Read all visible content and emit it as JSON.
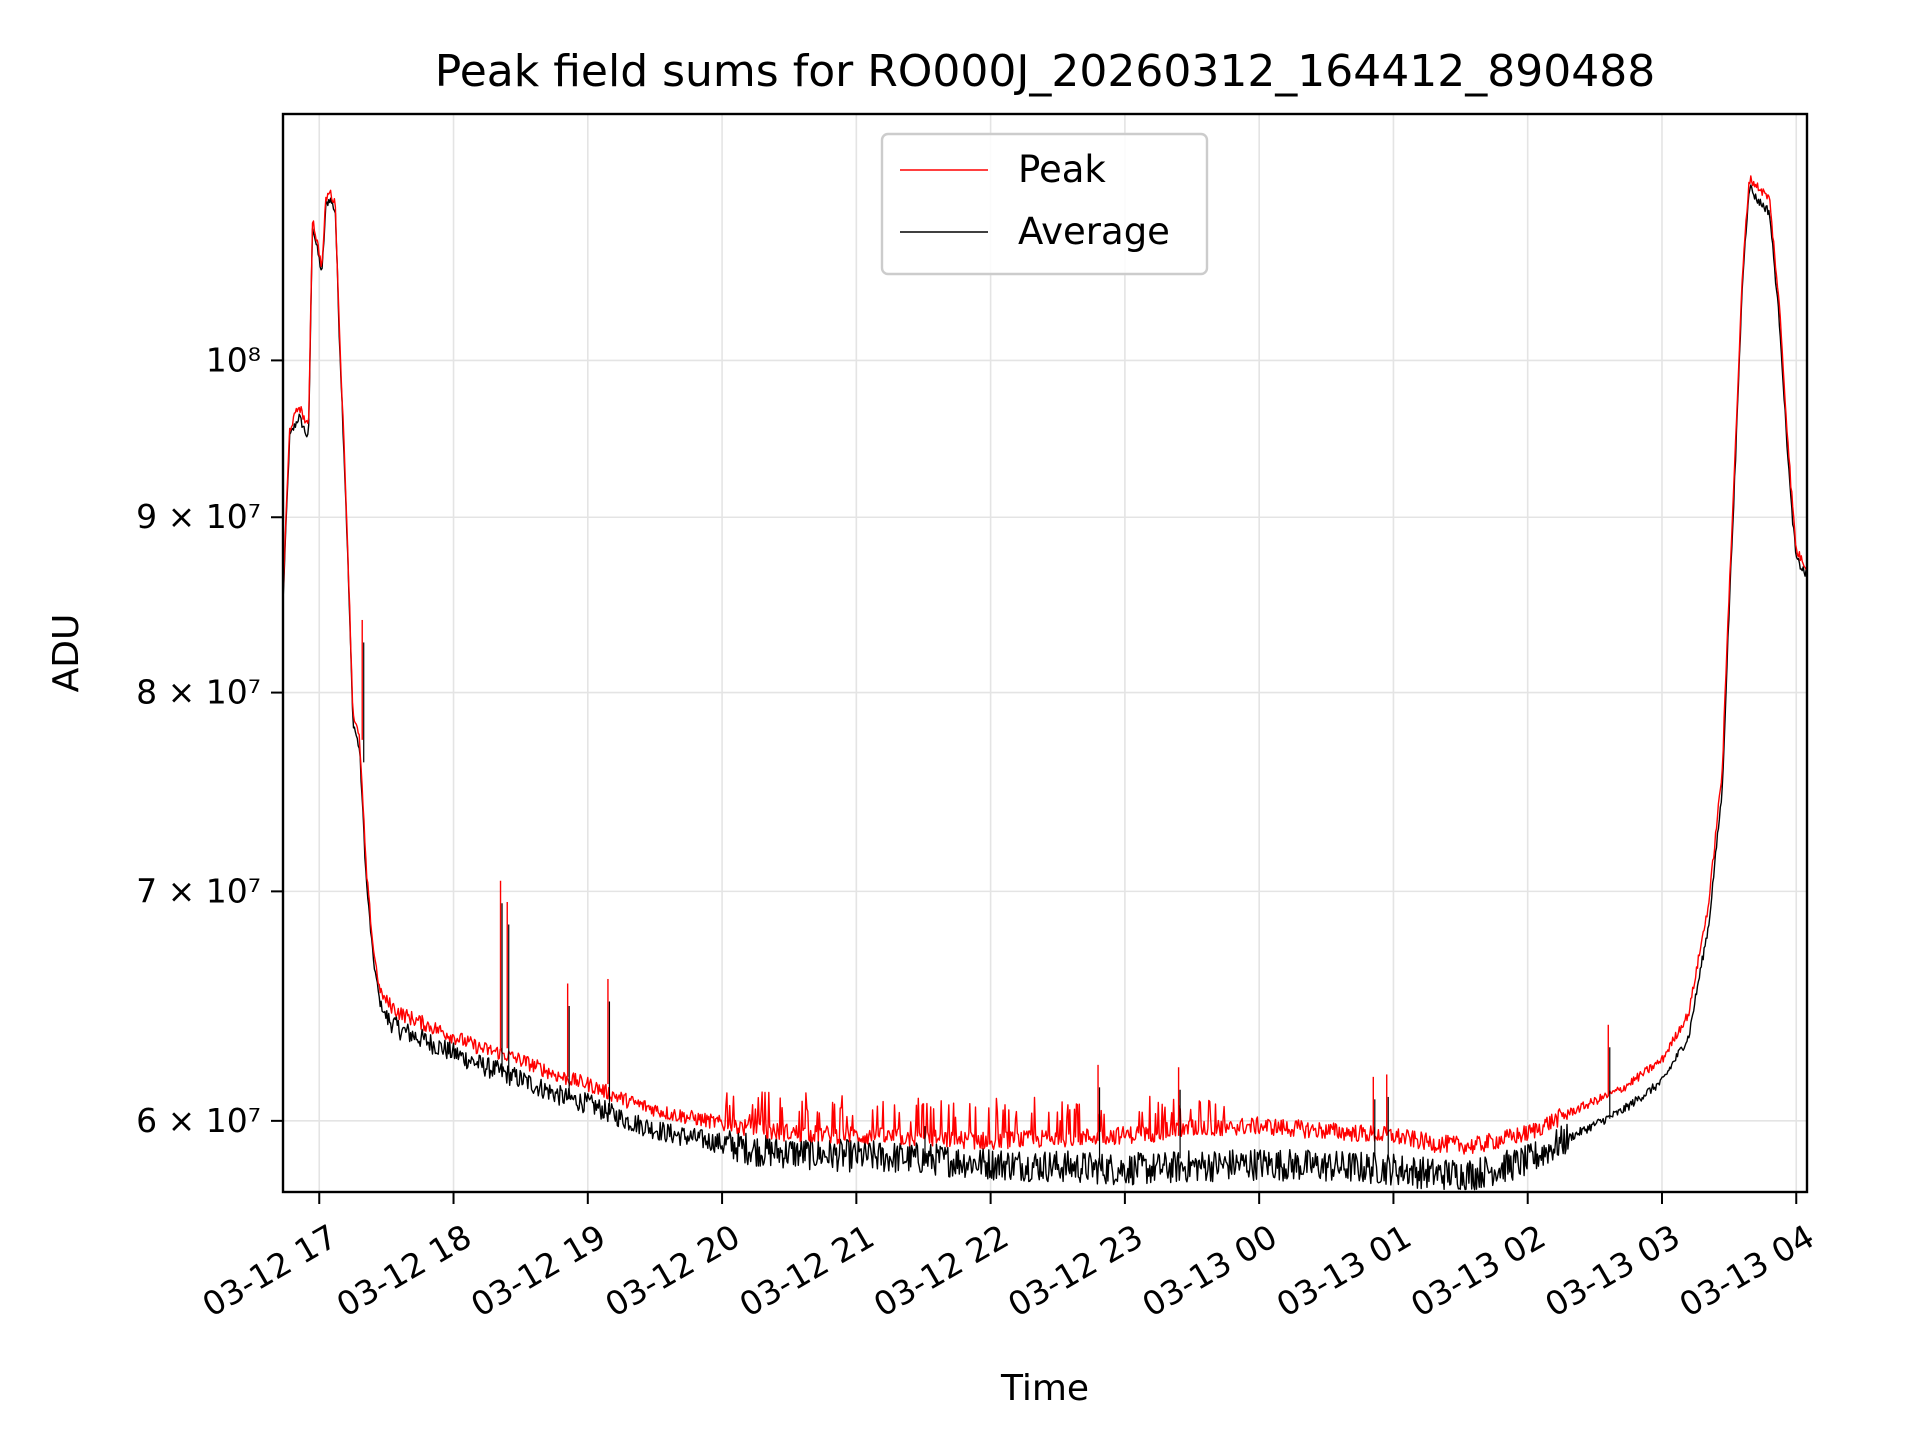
{
  "chart_data": {
    "type": "line",
    "title": "Peak field sums for RO000J_20260312_164412_890488",
    "xlabel": "Time",
    "ylabel": "ADU",
    "yscale": "log",
    "grid": true,
    "legend_position": "upper-center",
    "xlim_hours": [
      16.73,
      28.08
    ],
    "ylim": [
      57200000,
      118000000
    ],
    "x_ticks": [
      {
        "hour": 17,
        "label": "03-12 17"
      },
      {
        "hour": 18,
        "label": "03-12 18"
      },
      {
        "hour": 19,
        "label": "03-12 19"
      },
      {
        "hour": 20,
        "label": "03-12 20"
      },
      {
        "hour": 21,
        "label": "03-12 21"
      },
      {
        "hour": 22,
        "label": "03-12 22"
      },
      {
        "hour": 23,
        "label": "03-12 23"
      },
      {
        "hour": 24,
        "label": "03-13 00"
      },
      {
        "hour": 25,
        "label": "03-13 01"
      },
      {
        "hour": 26,
        "label": "03-13 02"
      },
      {
        "hour": 27,
        "label": "03-13 03"
      },
      {
        "hour": 28,
        "label": "03-13 04"
      }
    ],
    "y_ticks": [
      {
        "value": 60000000,
        "label": "6 × 10⁷"
      },
      {
        "value": 70000000,
        "label": "7 × 10⁷"
      },
      {
        "value": 80000000,
        "label": "8 × 10⁷"
      },
      {
        "value": 90000000,
        "label": "9 × 10⁷"
      },
      {
        "value": 100000000,
        "label": "10⁸"
      }
    ],
    "series": [
      {
        "name": "Peak",
        "color": "#ff0000",
        "x_hours": [
          16.73,
          16.78,
          16.85,
          16.92,
          16.95,
          17.02,
          17.05,
          17.08,
          17.12,
          17.15,
          17.2,
          17.25,
          17.3,
          17.35,
          17.4,
          17.45,
          17.5,
          17.6,
          17.8,
          18.0,
          18.2,
          18.35,
          18.5,
          18.8,
          19.0,
          19.3,
          19.6,
          20.0,
          20.3,
          20.6,
          21.0,
          21.5,
          22.0,
          22.5,
          22.9,
          23.2,
          23.5,
          24.0,
          24.5,
          25.0,
          25.3,
          25.6,
          26.0,
          26.3,
          26.7,
          27.0,
          27.2,
          27.35,
          27.45,
          27.55,
          27.6,
          27.65,
          27.7,
          27.75,
          27.8,
          27.88,
          27.92,
          27.96,
          28.0,
          28.08
        ],
        "values": [
          85500000,
          95500000,
          97000000,
          95500000,
          110000000,
          106500000,
          111500000,
          112000000,
          111000000,
          102000000,
          91000000,
          79000000,
          77500000,
          71000000,
          67500000,
          65500000,
          65000000,
          64500000,
          64000000,
          63500000,
          63000000,
          62800000,
          62500000,
          61800000,
          61500000,
          60800000,
          60300000,
          59900000,
          59600000,
          59500000,
          59400000,
          59300000,
          59200000,
          59300000,
          59400000,
          59500000,
          59700000,
          59800000,
          59600000,
          59400000,
          59100000,
          59000000,
          59500000,
          60300000,
          61300000,
          62500000,
          64500000,
          69500000,
          76000000,
          95000000,
          106000000,
          113000000,
          112500000,
          112000000,
          111500000,
          103000000,
          97000000,
          92000000,
          88000000,
          87000000
        ]
      },
      {
        "name": "Average",
        "color": "#000000",
        "x_hours": [
          16.73,
          16.78,
          16.85,
          16.92,
          16.95,
          17.02,
          17.05,
          17.08,
          17.12,
          17.15,
          17.2,
          17.25,
          17.3,
          17.35,
          17.4,
          17.45,
          17.5,
          17.6,
          17.8,
          18.0,
          18.2,
          18.35,
          18.5,
          18.8,
          19.0,
          19.3,
          19.6,
          20.0,
          20.3,
          20.6,
          21.0,
          21.5,
          22.0,
          22.5,
          22.9,
          23.2,
          23.5,
          24.0,
          24.5,
          25.0,
          25.3,
          25.6,
          26.0,
          26.3,
          26.7,
          27.0,
          27.2,
          27.35,
          27.45,
          27.55,
          27.6,
          27.65,
          27.7,
          27.75,
          27.8,
          27.88,
          27.92,
          27.96,
          28.0,
          28.08
        ],
        "values": [
          85000000,
          95000000,
          96300000,
          94800000,
          109500000,
          106000000,
          111000000,
          111500000,
          110500000,
          101500000,
          90500000,
          78500000,
          77000000,
          70500000,
          67000000,
          65000000,
          64300000,
          63800000,
          63300000,
          62800000,
          62300000,
          62000000,
          61700000,
          61000000,
          60700000,
          60000000,
          59500000,
          59100000,
          58800000,
          58700000,
          58600000,
          58500000,
          58300000,
          58200000,
          58100000,
          58100000,
          58200000,
          58300000,
          58200000,
          58100000,
          57900000,
          57900000,
          58400000,
          59300000,
          60400000,
          61600000,
          63500000,
          68500000,
          75000000,
          94000000,
          105500000,
          112500000,
          111500000,
          111000000,
          110500000,
          102000000,
          96000000,
          91000000,
          87500000,
          86500000
        ]
      }
    ],
    "spikes": [
      {
        "hour": 17.32,
        "peak": 84000000,
        "base": 77500000
      },
      {
        "hour": 18.35,
        "peak": 70500000,
        "base": 63000000
      },
      {
        "hour": 18.4,
        "peak": 69500000,
        "base": 63000000
      },
      {
        "hour": 18.85,
        "peak": 65800000,
        "base": 61800000
      },
      {
        "hour": 19.15,
        "peak": 66000000,
        "base": 61500000
      },
      {
        "hour": 21.5,
        "peak": 60700000,
        "base": 59300000
      },
      {
        "hour": 22.8,
        "peak": 62300000,
        "base": 59200000
      },
      {
        "hour": 23.4,
        "peak": 62200000,
        "base": 59400000
      },
      {
        "hour": 24.85,
        "peak": 61800000,
        "base": 59500000
      },
      {
        "hour": 24.95,
        "peak": 61900000,
        "base": 59400000
      },
      {
        "hour": 26.6,
        "peak": 64000000,
        "base": 61000000
      }
    ]
  }
}
